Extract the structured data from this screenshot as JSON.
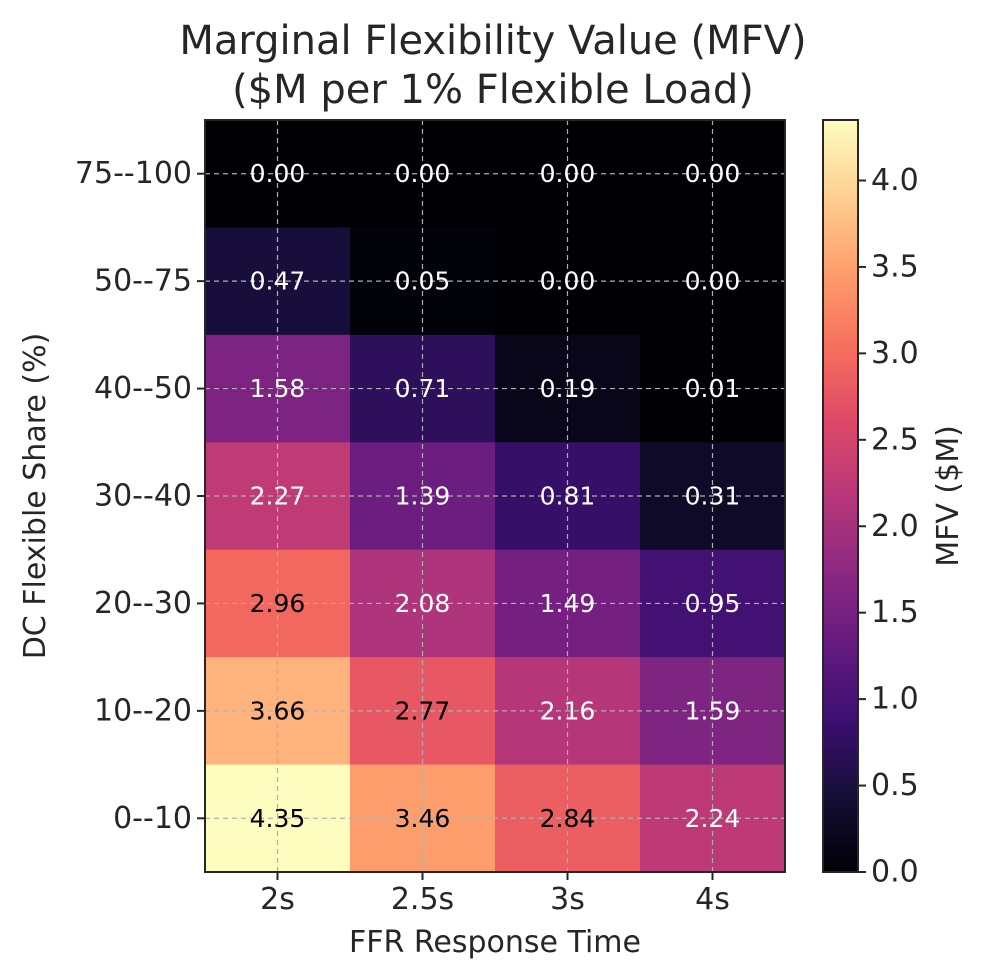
{
  "chart_data": {
    "type": "heatmap",
    "title": "Marginal Flexibility Value (MFV)",
    "subtitle": "($M per 1% Flexible Load)",
    "xlabel": "FFR Response Time",
    "ylabel": "DC Flexible Share (%)",
    "x_categories": [
      "2s",
      "2.5s",
      "3s",
      "4s"
    ],
    "y_categories": [
      "75--100",
      "50--75",
      "40--50",
      "30--40",
      "20--30",
      "10--20",
      "0--10"
    ],
    "values": [
      [
        0.0,
        0.0,
        0.0,
        0.0
      ],
      [
        0.47,
        0.05,
        0.0,
        0.0
      ],
      [
        1.58,
        0.71,
        0.19,
        0.01
      ],
      [
        2.27,
        1.39,
        0.81,
        0.31
      ],
      [
        2.96,
        2.08,
        1.49,
        0.95
      ],
      [
        3.66,
        2.77,
        2.16,
        1.59
      ],
      [
        4.35,
        3.46,
        2.84,
        2.24
      ]
    ],
    "value_labels": [
      [
        "0.00",
        "0.00",
        "0.00",
        "0.00"
      ],
      [
        "0.47",
        "0.05",
        "0.00",
        "0.00"
      ],
      [
        "1.58",
        "0.71",
        "0.19",
        "0.01"
      ],
      [
        "2.27",
        "1.39",
        "0.81",
        "0.31"
      ],
      [
        "2.96",
        "2.08",
        "1.49",
        "0.95"
      ],
      [
        "3.66",
        "2.77",
        "2.16",
        "1.59"
      ],
      [
        "4.35",
        "3.46",
        "2.84",
        "2.24"
      ]
    ],
    "colorbar": {
      "label": "MFV ($M)",
      "range": [
        0,
        4.35
      ],
      "ticks": [
        0.0,
        0.5,
        1.0,
        1.5,
        2.0,
        2.5,
        3.0,
        3.5,
        4.0
      ],
      "tick_labels": [
        "0.0",
        "0.5",
        "1.0",
        "1.5",
        "2.0",
        "2.5",
        "3.0",
        "3.5",
        "4.0"
      ],
      "colormap": "magma"
    },
    "grid": true,
    "label_colors": {
      "dark_bg": "#ffffff",
      "light_bg": "#000000"
    }
  }
}
